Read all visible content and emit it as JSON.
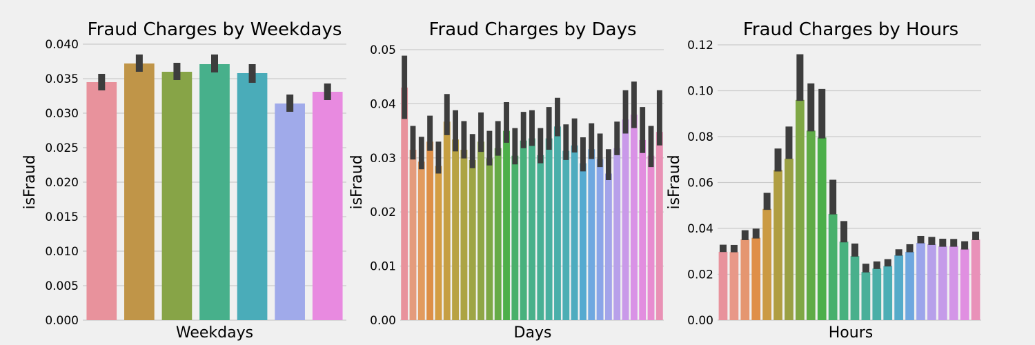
{
  "chart_data": [
    {
      "type": "bar",
      "title": "Fraud Charges by Weekdays",
      "xlabel": "Weekdays",
      "ylabel": "isFraud",
      "ylim": [
        0,
        0.04
      ],
      "yticks": [
        "0.000",
        "0.005",
        "0.010",
        "0.015",
        "0.020",
        "0.025",
        "0.030",
        "0.035",
        "0.040"
      ],
      "grid": true,
      "values": [
        0.0345,
        0.0372,
        0.036,
        0.0371,
        0.0358,
        0.0314,
        0.0331
      ],
      "err_low": [
        0.0333,
        0.036,
        0.0348,
        0.0359,
        0.0344,
        0.0302,
        0.0319
      ],
      "err_high": [
        0.0357,
        0.0385,
        0.0373,
        0.0385,
        0.0371,
        0.0327,
        0.0343
      ],
      "colors": [
        "#e8929c",
        "#c09548",
        "#87a447",
        "#47b08b",
        "#4aacb9",
        "#a0aaea",
        "#e88ae0"
      ]
    },
    {
      "type": "bar",
      "title": "Fraud Charges by Days",
      "xlabel": "Days",
      "ylabel": "isFraud",
      "ylim": [
        0,
        0.05
      ],
      "yticks": [
        "0.00",
        "0.01",
        "0.02",
        "0.03",
        "0.04",
        "0.05"
      ],
      "grid": true,
      "values": [
        0.043,
        0.0315,
        0.0293,
        0.033,
        0.0285,
        0.0367,
        0.0334,
        0.0315,
        0.0296,
        0.033,
        0.0299,
        0.0318,
        0.035,
        0.0304,
        0.0332,
        0.0336,
        0.0305,
        0.0336,
        0.0358,
        0.0313,
        0.0323,
        0.029,
        0.0316,
        0.0298,
        0.0271,
        0.0318,
        0.0371,
        0.038,
        0.0333,
        0.0304,
        0.0348
      ],
      "err_low": [
        0.0372,
        0.0297,
        0.0279,
        0.0313,
        0.0271,
        0.0342,
        0.0312,
        0.0299,
        0.0281,
        0.0311,
        0.0286,
        0.0304,
        0.0328,
        0.0288,
        0.0318,
        0.0322,
        0.029,
        0.0315,
        0.034,
        0.0296,
        0.031,
        0.0275,
        0.0298,
        0.0283,
        0.0259,
        0.0305,
        0.0345,
        0.0355,
        0.0309,
        0.0283,
        0.0323
      ],
      "err_high": [
        0.0489,
        0.0359,
        0.0339,
        0.0378,
        0.033,
        0.0418,
        0.0388,
        0.0368,
        0.0344,
        0.0384,
        0.035,
        0.0368,
        0.0403,
        0.0355,
        0.0385,
        0.0388,
        0.0355,
        0.0394,
        0.0411,
        0.0362,
        0.0373,
        0.0338,
        0.0364,
        0.0345,
        0.0316,
        0.0367,
        0.0425,
        0.0441,
        0.0394,
        0.0359,
        0.0425
      ],
      "colors": [
        "#e8929c",
        "#e49b7c",
        "#e29b5f",
        "#dd8f47",
        "#d39d43",
        "#c69f42",
        "#b8a243",
        "#aca444",
        "#9ea545",
        "#8fa646",
        "#7da846",
        "#66ab47",
        "#4daf4a",
        "#49b06a",
        "#48b17d",
        "#48b18a",
        "#48b094",
        "#49b0a0",
        "#4aafaa",
        "#4caeb4",
        "#4eacbf",
        "#55aad0",
        "#6fa8e0",
        "#8aa5e8",
        "#a3a4ea",
        "#b8a0ea",
        "#c999e9",
        "#d992e6",
        "#e28ddf",
        "#e88cd0",
        "#e991b5"
      ]
    },
    {
      "type": "bar",
      "title": "Fraud Charges by Hours",
      "xlabel": "Hours",
      "ylabel": "isFraud",
      "ylim": [
        0,
        0.12
      ],
      "yticks": [
        "0.00",
        "0.02",
        "0.04",
        "0.06",
        "0.08",
        "0.10",
        "0.12"
      ],
      "grid": true,
      "values": [
        0.0298,
        0.0297,
        0.0352,
        0.0359,
        0.0485,
        0.0654,
        0.0704,
        0.096,
        0.0826,
        0.0796,
        0.0463,
        0.0342,
        0.0279,
        0.021,
        0.0225,
        0.0236,
        0.0283,
        0.0298,
        0.0337,
        0.0331,
        0.0322,
        0.0323,
        0.0311,
        0.0352
      ],
      "err_low": [
        0.0297,
        0.0296,
        0.0349,
        0.0356,
        0.0481,
        0.0648,
        0.0703,
        0.0956,
        0.0823,
        0.0792,
        0.0461,
        0.0339,
        0.0277,
        0.0208,
        0.0223,
        0.0234,
        0.0281,
        0.0296,
        0.0335,
        0.0328,
        0.032,
        0.032,
        0.0308,
        0.0349
      ],
      "err_high": [
        0.0329,
        0.0328,
        0.0392,
        0.0399,
        0.0555,
        0.0748,
        0.0844,
        0.1159,
        0.1032,
        0.1008,
        0.0612,
        0.0432,
        0.0334,
        0.0246,
        0.0256,
        0.0266,
        0.0309,
        0.0331,
        0.0367,
        0.0363,
        0.0355,
        0.0354,
        0.0344,
        0.0386
      ],
      "colors": [
        "#e8929c",
        "#e89888",
        "#e59670",
        "#df8f48",
        "#cb9a43",
        "#b09e42",
        "#9aa044",
        "#7fa745",
        "#5fab46",
        "#4caf4a",
        "#48b06c",
        "#48b17e",
        "#48b08c",
        "#49af99",
        "#4aafa7",
        "#4caeb5",
        "#55abc9",
        "#6ea7df",
        "#9ca5eb",
        "#b7a0ea",
        "#c59be9",
        "#d395e7",
        "#e08fe1",
        "#e991b9"
      ]
    }
  ]
}
